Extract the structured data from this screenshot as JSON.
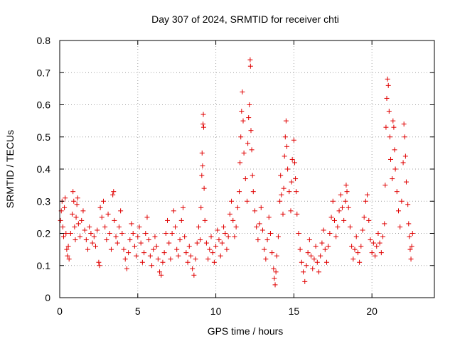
{
  "chart_data": {
    "type": "scatter",
    "title": "Day 307 of 2024, SRMTID for receiver chti",
    "xlabel": "GPS time / hours",
    "ylabel": "SRMTID / TECUs",
    "xlim": [
      0,
      24
    ],
    "ylim": [
      0,
      0.8
    ],
    "xticks": [
      0,
      5,
      10,
      15,
      20
    ],
    "yticks": [
      0,
      0.1,
      0.2,
      0.3,
      0.4,
      0.5,
      0.6,
      0.7,
      0.8
    ],
    "xtick_labels": [
      "0",
      "5",
      "10",
      "15",
      "20"
    ],
    "ytick_labels": [
      "0",
      "0.1",
      "0.2",
      "0.3",
      "0.4",
      "0.5",
      "0.6",
      "0.7",
      "0.8"
    ],
    "grid": true,
    "marker": "+",
    "marker_color": "#e00000",
    "series": [
      {
        "name": "SRMTID",
        "points": [
          [
            0.05,
            0.24
          ],
          [
            0.1,
            0.27
          ],
          [
            0.15,
            0.3
          ],
          [
            0.2,
            0.22
          ],
          [
            0.25,
            0.19
          ],
          [
            0.3,
            0.28
          ],
          [
            0.35,
            0.31
          ],
          [
            0.4,
            0.2
          ],
          [
            0.45,
            0.15
          ],
          [
            0.5,
            0.13
          ],
          [
            0.55,
            0.16
          ],
          [
            0.6,
            0.12
          ],
          [
            0.7,
            0.2
          ],
          [
            0.8,
            0.26
          ],
          [
            0.85,
            0.33
          ],
          [
            0.9,
            0.3
          ],
          [
            0.95,
            0.22
          ],
          [
            1.0,
            0.18
          ],
          [
            1.05,
            0.25
          ],
          [
            1.1,
            0.29
          ],
          [
            1.15,
            0.31
          ],
          [
            1.2,
            0.23
          ],
          [
            1.3,
            0.19
          ],
          [
            1.4,
            0.24
          ],
          [
            1.5,
            0.27
          ],
          [
            1.6,
            0.21
          ],
          [
            1.7,
            0.18
          ],
          [
            1.8,
            0.15
          ],
          [
            1.9,
            0.22
          ],
          [
            2.0,
            0.2
          ],
          [
            2.1,
            0.17
          ],
          [
            2.2,
            0.19
          ],
          [
            2.3,
            0.16
          ],
          [
            2.4,
            0.21
          ],
          [
            2.5,
            0.11
          ],
          [
            2.55,
            0.1
          ],
          [
            2.6,
            0.28
          ],
          [
            2.7,
            0.25
          ],
          [
            2.8,
            0.3
          ],
          [
            2.9,
            0.22
          ],
          [
            3.0,
            0.18
          ],
          [
            3.1,
            0.26
          ],
          [
            3.2,
            0.2
          ],
          [
            3.3,
            0.15
          ],
          [
            3.4,
            0.32
          ],
          [
            3.45,
            0.33
          ],
          [
            3.5,
            0.24
          ],
          [
            3.6,
            0.19
          ],
          [
            3.7,
            0.17
          ],
          [
            3.8,
            0.22
          ],
          [
            3.9,
            0.27
          ],
          [
            4.0,
            0.2
          ],
          [
            4.1,
            0.15
          ],
          [
            4.2,
            0.12
          ],
          [
            4.3,
            0.09
          ],
          [
            4.4,
            0.14
          ],
          [
            4.5,
            0.18
          ],
          [
            4.6,
            0.23
          ],
          [
            4.7,
            0.2
          ],
          [
            4.8,
            0.16
          ],
          [
            4.9,
            0.13
          ],
          [
            5.0,
            0.19
          ],
          [
            5.1,
            0.22
          ],
          [
            5.2,
            0.17
          ],
          [
            5.3,
            0.11
          ],
          [
            5.4,
            0.14
          ],
          [
            5.5,
            0.2
          ],
          [
            5.6,
            0.25
          ],
          [
            5.7,
            0.18
          ],
          [
            5.8,
            0.13
          ],
          [
            5.9,
            0.1
          ],
          [
            6.0,
            0.15
          ],
          [
            6.1,
            0.19
          ],
          [
            6.2,
            0.16
          ],
          [
            6.3,
            0.12
          ],
          [
            6.4,
            0.08
          ],
          [
            6.5,
            0.07
          ],
          [
            6.6,
            0.11
          ],
          [
            6.7,
            0.14
          ],
          [
            6.8,
            0.2
          ],
          [
            6.9,
            0.24
          ],
          [
            7.0,
            0.17
          ],
          [
            7.1,
            0.12
          ],
          [
            7.2,
            0.2
          ],
          [
            7.3,
            0.27
          ],
          [
            7.4,
            0.22
          ],
          [
            7.5,
            0.15
          ],
          [
            7.6,
            0.13
          ],
          [
            7.7,
            0.18
          ],
          [
            7.8,
            0.24
          ],
          [
            7.9,
            0.28
          ],
          [
            8.0,
            0.19
          ],
          [
            8.1,
            0.14
          ],
          [
            8.2,
            0.11
          ],
          [
            8.3,
            0.16
          ],
          [
            8.4,
            0.13
          ],
          [
            8.5,
            0.09
          ],
          [
            8.6,
            0.07
          ],
          [
            8.7,
            0.12
          ],
          [
            8.8,
            0.17
          ],
          [
            8.9,
            0.22
          ],
          [
            9.0,
            0.18
          ],
          [
            9.05,
            0.28
          ],
          [
            9.1,
            0.38
          ],
          [
            9.12,
            0.45
          ],
          [
            9.15,
            0.41
          ],
          [
            9.18,
            0.54
          ],
          [
            9.2,
            0.57
          ],
          [
            9.22,
            0.53
          ],
          [
            9.25,
            0.34
          ],
          [
            9.3,
            0.24
          ],
          [
            9.4,
            0.17
          ],
          [
            9.5,
            0.12
          ],
          [
            9.6,
            0.15
          ],
          [
            9.7,
            0.19
          ],
          [
            9.8,
            0.14
          ],
          [
            9.9,
            0.11
          ],
          [
            10.0,
            0.16
          ],
          [
            10.1,
            0.21
          ],
          [
            10.2,
            0.18
          ],
          [
            10.3,
            0.13
          ],
          [
            10.4,
            0.17
          ],
          [
            10.5,
            0.22
          ],
          [
            10.6,
            0.2
          ],
          [
            10.7,
            0.15
          ],
          [
            10.8,
            0.19
          ],
          [
            10.9,
            0.26
          ],
          [
            11.0,
            0.3
          ],
          [
            11.1,
            0.24
          ],
          [
            11.2,
            0.19
          ],
          [
            11.3,
            0.22
          ],
          [
            11.4,
            0.28
          ],
          [
            11.5,
            0.33
          ],
          [
            11.55,
            0.42
          ],
          [
            11.6,
            0.5
          ],
          [
            11.65,
            0.58
          ],
          [
            11.7,
            0.64
          ],
          [
            11.75,
            0.55
          ],
          [
            11.8,
            0.45
          ],
          [
            11.9,
            0.37
          ],
          [
            12.0,
            0.3
          ],
          [
            12.05,
            0.48
          ],
          [
            12.1,
            0.56
          ],
          [
            12.15,
            0.6
          ],
          [
            12.2,
            0.74
          ],
          [
            12.22,
            0.72
          ],
          [
            12.25,
            0.52
          ],
          [
            12.3,
            0.46
          ],
          [
            12.35,
            0.38
          ],
          [
            12.4,
            0.33
          ],
          [
            12.5,
            0.27
          ],
          [
            12.6,
            0.22
          ],
          [
            12.7,
            0.18
          ],
          [
            12.8,
            0.23
          ],
          [
            12.9,
            0.28
          ],
          [
            13.0,
            0.21
          ],
          [
            13.1,
            0.15
          ],
          [
            13.2,
            0.12
          ],
          [
            13.3,
            0.18
          ],
          [
            13.4,
            0.25
          ],
          [
            13.5,
            0.2
          ],
          [
            13.6,
            0.14
          ],
          [
            13.7,
            0.09
          ],
          [
            13.75,
            0.06
          ],
          [
            13.8,
            0.04
          ],
          [
            13.85,
            0.08
          ],
          [
            13.9,
            0.13
          ],
          [
            14.0,
            0.19
          ],
          [
            14.1,
            0.3
          ],
          [
            14.15,
            0.38
          ],
          [
            14.2,
            0.32
          ],
          [
            14.3,
            0.26
          ],
          [
            14.35,
            0.34
          ],
          [
            14.4,
            0.44
          ],
          [
            14.45,
            0.5
          ],
          [
            14.5,
            0.55
          ],
          [
            14.55,
            0.47
          ],
          [
            14.6,
            0.4
          ],
          [
            14.7,
            0.33
          ],
          [
            14.8,
            0.27
          ],
          [
            14.85,
            0.36
          ],
          [
            14.9,
            0.43
          ],
          [
            15.0,
            0.49
          ],
          [
            15.05,
            0.42
          ],
          [
            15.1,
            0.37
          ],
          [
            15.15,
            0.33
          ],
          [
            15.2,
            0.26
          ],
          [
            15.3,
            0.2
          ],
          [
            15.4,
            0.15
          ],
          [
            15.5,
            0.11
          ],
          [
            15.6,
            0.08
          ],
          [
            15.7,
            0.05
          ],
          [
            15.8,
            0.1
          ],
          [
            15.9,
            0.14
          ],
          [
            16.0,
            0.18
          ],
          [
            16.1,
            0.13
          ],
          [
            16.2,
            0.09
          ],
          [
            16.3,
            0.12
          ],
          [
            16.4,
            0.16
          ],
          [
            16.5,
            0.11
          ],
          [
            16.6,
            0.08
          ],
          [
            16.7,
            0.13
          ],
          [
            16.8,
            0.17
          ],
          [
            16.9,
            0.21
          ],
          [
            17.0,
            0.15
          ],
          [
            17.1,
            0.11
          ],
          [
            17.2,
            0.16
          ],
          [
            17.3,
            0.2
          ],
          [
            17.4,
            0.25
          ],
          [
            17.5,
            0.3
          ],
          [
            17.6,
            0.24
          ],
          [
            17.7,
            0.19
          ],
          [
            17.8,
            0.22
          ],
          [
            17.9,
            0.27
          ],
          [
            18.0,
            0.32
          ],
          [
            18.1,
            0.28
          ],
          [
            18.2,
            0.24
          ],
          [
            18.3,
            0.3
          ],
          [
            18.35,
            0.35
          ],
          [
            18.4,
            0.33
          ],
          [
            18.5,
            0.28
          ],
          [
            18.6,
            0.22
          ],
          [
            18.7,
            0.16
          ],
          [
            18.8,
            0.12
          ],
          [
            18.9,
            0.15
          ],
          [
            19.0,
            0.19
          ],
          [
            19.1,
            0.14
          ],
          [
            19.2,
            0.11
          ],
          [
            19.3,
            0.16
          ],
          [
            19.4,
            0.21
          ],
          [
            19.5,
            0.25
          ],
          [
            19.6,
            0.3
          ],
          [
            19.7,
            0.32
          ],
          [
            19.8,
            0.24
          ],
          [
            19.9,
            0.18
          ],
          [
            20.0,
            0.14
          ],
          [
            20.1,
            0.17
          ],
          [
            20.2,
            0.13
          ],
          [
            20.3,
            0.16
          ],
          [
            20.4,
            0.2
          ],
          [
            20.5,
            0.17
          ],
          [
            20.6,
            0.14
          ],
          [
            20.7,
            0.19
          ],
          [
            20.8,
            0.23
          ],
          [
            20.85,
            0.35
          ],
          [
            20.9,
            0.53
          ],
          [
            20.95,
            0.62
          ],
          [
            21.0,
            0.68
          ],
          [
            21.05,
            0.66
          ],
          [
            21.1,
            0.58
          ],
          [
            21.15,
            0.5
          ],
          [
            21.2,
            0.43
          ],
          [
            21.3,
            0.37
          ],
          [
            21.35,
            0.55
          ],
          [
            21.4,
            0.53
          ],
          [
            21.45,
            0.46
          ],
          [
            21.5,
            0.4
          ],
          [
            21.6,
            0.33
          ],
          [
            21.7,
            0.27
          ],
          [
            21.8,
            0.22
          ],
          [
            21.9,
            0.3
          ],
          [
            22.0,
            0.42
          ],
          [
            22.05,
            0.54
          ],
          [
            22.1,
            0.5
          ],
          [
            22.15,
            0.44
          ],
          [
            22.2,
            0.36
          ],
          [
            22.3,
            0.29
          ],
          [
            22.35,
            0.23
          ],
          [
            22.4,
            0.19
          ],
          [
            22.45,
            0.15
          ],
          [
            22.5,
            0.12
          ],
          [
            22.55,
            0.16
          ],
          [
            22.6,
            0.2
          ]
        ]
      }
    ]
  }
}
